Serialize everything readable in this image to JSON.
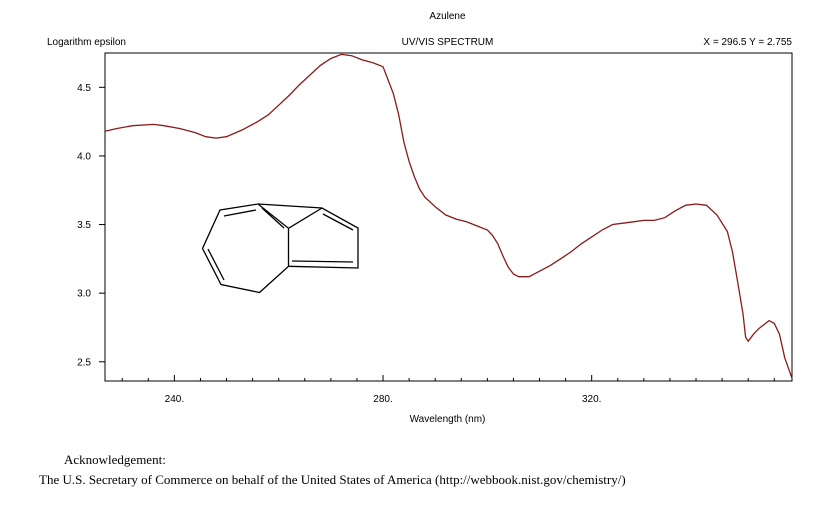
{
  "chart_data": {
    "type": "line",
    "title": "Azulene",
    "subtitle": "UV/VIS SPECTRUM",
    "ylabel": "Logarithm epsilon",
    "xlabel": "Wavelength (nm)",
    "readout": "X = 296.5   Y = 2.755",
    "xlim": [
      226.7,
      358.4
    ],
    "ylim": [
      2.36,
      4.75
    ],
    "xticks": [
      240,
      280,
      320
    ],
    "xtick_labels": [
      "240.",
      "280.",
      "320."
    ],
    "yticks": [
      2.5,
      3.0,
      3.5,
      4.0,
      4.5
    ],
    "ytick_labels": [
      "2.5",
      "3.0",
      "3.5",
      "4.0",
      "4.5"
    ],
    "grid": false,
    "line_color": "#8b1a1a",
    "series": [
      {
        "x": [
          226.7,
          229,
          232,
          236,
          238,
          241,
          244,
          246,
          248,
          250,
          253,
          256,
          258,
          260,
          262,
          264,
          266,
          268,
          270,
          272,
          274,
          276,
          278,
          280,
          281,
          282,
          283,
          284,
          285,
          286,
          287,
          288,
          290,
          292,
          294,
          296,
          298,
          300,
          301,
          302,
          303,
          304,
          305,
          306,
          307,
          308,
          310,
          312,
          314,
          316,
          318,
          320,
          322,
          324,
          326,
          328,
          330,
          332,
          334,
          336,
          338,
          340,
          342,
          344,
          346,
          347,
          348,
          349,
          349.5,
          350,
          351,
          352,
          353,
          354,
          355,
          356,
          357,
          358.4
        ],
        "y": [
          4.18,
          4.2,
          4.22,
          4.23,
          4.22,
          4.2,
          4.17,
          4.14,
          4.13,
          4.14,
          4.19,
          4.25,
          4.3,
          4.37,
          4.44,
          4.52,
          4.59,
          4.66,
          4.71,
          4.74,
          4.73,
          4.7,
          4.68,
          4.65,
          4.55,
          4.45,
          4.3,
          4.1,
          3.96,
          3.85,
          3.76,
          3.7,
          3.63,
          3.57,
          3.54,
          3.52,
          3.49,
          3.46,
          3.42,
          3.36,
          3.27,
          3.19,
          3.14,
          3.12,
          3.12,
          3.12,
          3.16,
          3.2,
          3.25,
          3.3,
          3.36,
          3.41,
          3.46,
          3.5,
          3.51,
          3.52,
          3.53,
          3.53,
          3.55,
          3.6,
          3.64,
          3.65,
          3.64,
          3.57,
          3.45,
          3.3,
          3.08,
          2.85,
          2.68,
          2.65,
          2.7,
          2.74,
          2.77,
          2.8,
          2.78,
          2.7,
          2.53,
          2.38
        ]
      }
    ]
  },
  "acknowledgement": {
    "title": "Acknowledgement:",
    "text": "The U.S. Secretary of Commerce on behalf of the United States of America (http://webbook.nist.gov/chemistry/)"
  }
}
